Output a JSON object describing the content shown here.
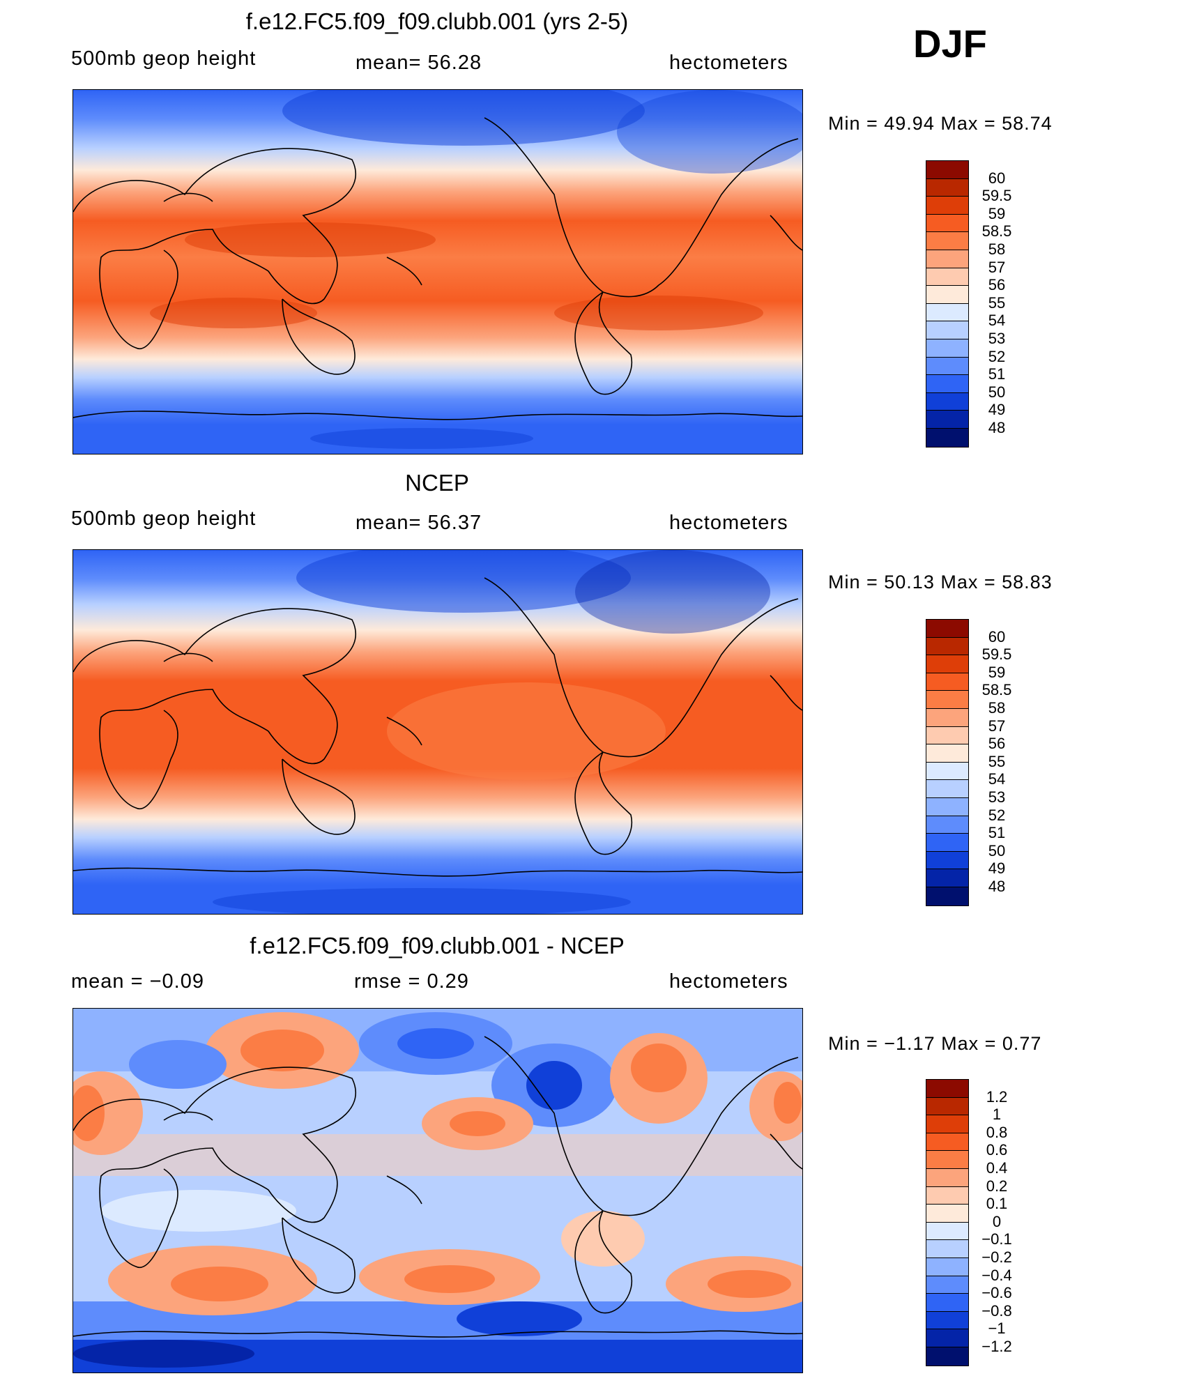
{
  "season": "DJF",
  "panels": [
    {
      "title": "f.e12.FC5.f09_f09.clubb.001 (yrs 2-5)",
      "left_label": "500mb  geop  height",
      "mid_label": "mean=   56.28",
      "right_label": "hectometers",
      "minmax": "Min  =    49.94  Max  =    58.74",
      "levels": [
        "60",
        "59.5",
        "59",
        "58.5",
        "58",
        "57",
        "56",
        "55",
        "54",
        "53",
        "52",
        "51",
        "50",
        "49",
        "48"
      ],
      "colors": [
        "#8c0a00",
        "#b92800",
        "#de3e08",
        "#f65c22",
        "#fb7d45",
        "#fca47c",
        "#fecbb0",
        "#feeada",
        "#dceaff",
        "#b8d0ff",
        "#8eb2ff",
        "#5e8cfc",
        "#2f64f5",
        "#1040d8",
        "#0424a8",
        "#00106e"
      ]
    },
    {
      "title": "NCEP",
      "left_label": "500mb  geop  height",
      "mid_label": "mean=   56.37",
      "right_label": "hectometers",
      "minmax": "Min  =    50.13  Max  =    58.83",
      "levels": [
        "60",
        "59.5",
        "59",
        "58.5",
        "58",
        "57",
        "56",
        "55",
        "54",
        "53",
        "52",
        "51",
        "50",
        "49",
        "48"
      ],
      "colors": [
        "#8c0a00",
        "#b92800",
        "#de3e08",
        "#f65c22",
        "#fb7d45",
        "#fca47c",
        "#fecbb0",
        "#feeada",
        "#dceaff",
        "#b8d0ff",
        "#8eb2ff",
        "#5e8cfc",
        "#2f64f5",
        "#1040d8",
        "#0424a8",
        "#00106e"
      ]
    },
    {
      "title": "f.e12.FC5.f09_f09.clubb.001 - NCEP",
      "left_label": "mean  =    −0.09",
      "mid_label": "rmse  =     0.29",
      "right_label": "hectometers",
      "minmax": "Min  =    −1.17  Max  =     0.77",
      "levels": [
        "1.2",
        "1",
        "0.8",
        "0.6",
        "0.4",
        "0.2",
        "0.1",
        "0",
        "−0.1",
        "−0.2",
        "−0.4",
        "−0.6",
        "−0.8",
        "−1",
        "−1.2"
      ],
      "colors": [
        "#8c0a00",
        "#b92800",
        "#de3e08",
        "#f65c22",
        "#fb7d45",
        "#fca47c",
        "#fecbb0",
        "#feeada",
        "#dceaff",
        "#b8d0ff",
        "#8eb2ff",
        "#5e8cfc",
        "#2f64f5",
        "#1040d8",
        "#0424a8",
        "#00106e"
      ]
    }
  ]
}
